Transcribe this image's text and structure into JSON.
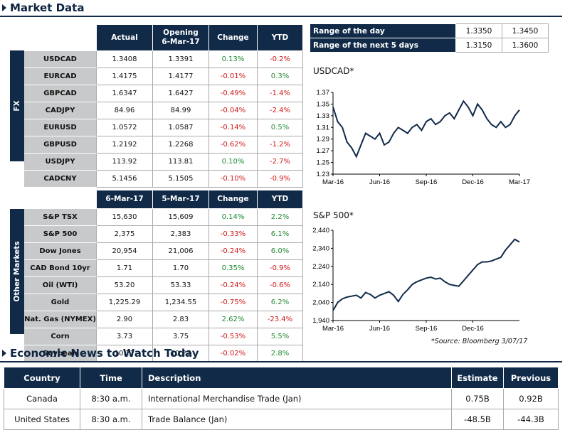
{
  "market_title": "Market Data",
  "fx": {
    "side_label": "FX",
    "headers": [
      "Actual",
      "Opening\n6-Mar-17",
      "Change",
      "YTD"
    ],
    "rows": [
      {
        "name": "USDCAD",
        "actual": "1.3408",
        "opening": "1.3391",
        "change": "0.13%",
        "ytd": "-0.2%"
      },
      {
        "name": "EURCAD",
        "actual": "1.4175",
        "opening": "1.4177",
        "change": "-0.01%",
        "ytd": "0.3%"
      },
      {
        "name": "GBPCAD",
        "actual": "1.6347",
        "opening": "1.6427",
        "change": "-0.49%",
        "ytd": "-1.4%"
      },
      {
        "name": "CADJPY",
        "actual": "84.96",
        "opening": "84.99",
        "change": "-0.04%",
        "ytd": "-2.4%"
      },
      {
        "name": "EURUSD",
        "actual": "1.0572",
        "opening": "1.0587",
        "change": "-0.14%",
        "ytd": "0.5%"
      },
      {
        "name": "GBPUSD",
        "actual": "1.2192",
        "opening": "1.2268",
        "change": "-0.62%",
        "ytd": "-1.2%"
      },
      {
        "name": "USDJPY",
        "actual": "113.92",
        "opening": "113.81",
        "change": "0.10%",
        "ytd": "-2.7%"
      },
      {
        "name": "CADCNY",
        "actual": "5.1456",
        "opening": "5.1505",
        "change": "-0.10%",
        "ytd": "-0.9%"
      }
    ]
  },
  "other": {
    "side_label": "Other Markets",
    "headers": [
      "6-Mar-17",
      "5-Mar-17",
      "Change",
      "YTD"
    ],
    "rows": [
      {
        "name": "S&P TSX",
        "actual": "15,630",
        "opening": "15,609",
        "change": "0.14%",
        "ytd": "2.2%"
      },
      {
        "name": "S&P 500",
        "actual": "2,375",
        "opening": "2,383",
        "change": "-0.33%",
        "ytd": "6.1%"
      },
      {
        "name": "Dow Jones",
        "actual": "20,954",
        "opening": "21,006",
        "change": "-0.24%",
        "ytd": "6.0%"
      },
      {
        "name": "CAD Bond 10yr",
        "actual": "1.71",
        "opening": "1.70",
        "change": "0.35%",
        "ytd": "-0.9%"
      },
      {
        "name": "Oil (WTI)",
        "actual": "53.20",
        "opening": "53.33",
        "change": "-0.24%",
        "ytd": "-0.6%"
      },
      {
        "name": "Gold",
        "actual": "1,225.29",
        "opening": "1,234.55",
        "change": "-0.75%",
        "ytd": "6.2%"
      },
      {
        "name": "Nat. Gas (NYMEX)",
        "actual": "2.90",
        "opening": "2.83",
        "change": "2.62%",
        "ytd": "-23.4%"
      },
      {
        "name": "Corn",
        "actual": "3.73",
        "opening": "3.75",
        "change": "-0.53%",
        "ytd": "5.5%"
      },
      {
        "name": "Soybean",
        "actual": "10.27",
        "opening": "10.27",
        "change": "-0.02%",
        "ytd": "2.8%"
      }
    ]
  },
  "range": {
    "rows": [
      {
        "label": "Range of the day",
        "low": "1.3350",
        "high": "1.3450"
      },
      {
        "label": "Range of the next 5 days",
        "low": "1.3150",
        "high": "1.3600"
      }
    ]
  },
  "colors": {
    "navy": "#102a48",
    "positive": "#1e8a2e",
    "negative": "#d01818",
    "label_bg": "#c8c9cb"
  },
  "source": "*Source: Bloomberg  3/07/17",
  "chart_data": [
    {
      "type": "line",
      "title": "USDCAD*",
      "ylim": [
        1.23,
        1.37
      ],
      "yticks": [
        "1.37",
        "1.35",
        "1.33",
        "1.31",
        "1.29",
        "1.27",
        "1.25",
        "1.23"
      ],
      "xticks": [
        "Mar-16",
        "Jun-16",
        "Sep-16",
        "Dec-16",
        "Mar-17"
      ],
      "xrange": [
        0,
        12
      ],
      "series": [
        {
          "x": [
            0,
            0.3,
            0.6,
            0.9,
            1.2,
            1.5,
            1.8,
            2.1,
            2.4,
            2.7,
            3.0,
            3.3,
            3.6,
            3.9,
            4.2,
            4.5,
            4.8,
            5.1,
            5.4,
            5.7,
            6.0,
            6.3,
            6.6,
            6.9,
            7.2,
            7.5,
            7.8,
            8.1,
            8.4,
            8.7,
            9.0,
            9.3,
            9.6,
            9.9,
            10.2,
            10.5,
            10.8,
            11.1,
            11.4,
            11.7,
            12.0
          ],
          "y": [
            1.345,
            1.32,
            1.31,
            1.285,
            1.275,
            1.26,
            1.28,
            1.3,
            1.295,
            1.29,
            1.3,
            1.28,
            1.285,
            1.3,
            1.31,
            1.305,
            1.3,
            1.31,
            1.315,
            1.305,
            1.32,
            1.325,
            1.315,
            1.32,
            1.33,
            1.335,
            1.325,
            1.34,
            1.355,
            1.345,
            1.33,
            1.35,
            1.34,
            1.325,
            1.315,
            1.31,
            1.32,
            1.31,
            1.315,
            1.33,
            1.34
          ]
        }
      ]
    },
    {
      "type": "line",
      "title": "S&P 500*",
      "ylim": [
        1940,
        2440
      ],
      "yticks": [
        "2,440",
        "2,340",
        "2,240",
        "2,140",
        "2,040",
        "1,940"
      ],
      "xticks": [
        "Mar-16",
        "Jun-16",
        "Sep-16",
        "Dec-16"
      ],
      "xrange": [
        0,
        12
      ],
      "series": [
        {
          "x": [
            0,
            0.3,
            0.6,
            0.9,
            1.2,
            1.5,
            1.8,
            2.1,
            2.4,
            2.7,
            3.0,
            3.3,
            3.6,
            3.9,
            4.2,
            4.5,
            4.8,
            5.1,
            5.4,
            5.7,
            6.0,
            6.3,
            6.6,
            6.9,
            7.2,
            7.5,
            7.8,
            8.1,
            8.4,
            8.7,
            9.0,
            9.3,
            9.6,
            9.9,
            10.2,
            10.5,
            10.8,
            11.1,
            11.4,
            11.7,
            12.0
          ],
          "y": [
            1995,
            2040,
            2060,
            2070,
            2075,
            2080,
            2065,
            2095,
            2085,
            2065,
            2080,
            2090,
            2100,
            2080,
            2045,
            2085,
            2110,
            2140,
            2155,
            2165,
            2175,
            2180,
            2170,
            2175,
            2155,
            2140,
            2135,
            2130,
            2160,
            2190,
            2220,
            2250,
            2265,
            2265,
            2270,
            2280,
            2290,
            2330,
            2360,
            2390,
            2375
          ]
        }
      ]
    }
  ],
  "news": {
    "title": "Economic News to Watch Today",
    "headers": [
      "Country",
      "Time",
      "Description",
      "Estimate",
      "Previous"
    ],
    "rows": [
      {
        "country": "Canada",
        "time": "8:30 a.m.",
        "desc": "International Merchandise Trade (Jan)",
        "estimate": "0.75B",
        "previous": "0.92B"
      },
      {
        "country": "United States",
        "time": "8:30 a.m.",
        "desc": "Trade Balance (Jan)",
        "estimate": "-48.5B",
        "previous": "-44.3B"
      }
    ]
  }
}
